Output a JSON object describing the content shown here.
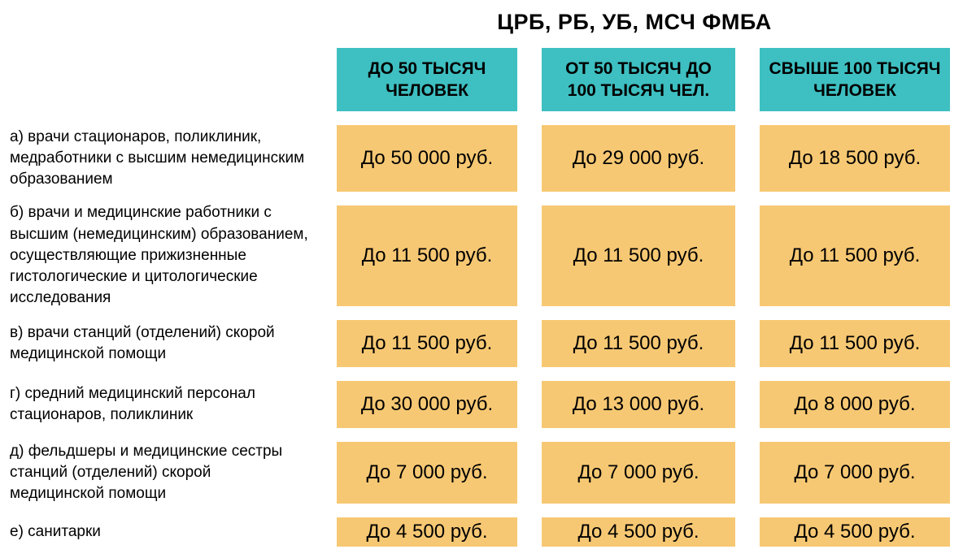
{
  "colors": {
    "header_bg": "#3ebfc1",
    "cell_bg": "#f7c873",
    "text": "#000000"
  },
  "chart_data": {
    "type": "table",
    "title": "ЦРБ, РБ, УБ, МСЧ ФМБА",
    "columns": [
      "ДО 50 ТЫСЯЧ ЧЕЛОВЕК",
      "ОТ 50 ТЫСЯЧ ДО 100 ТЫСЯЧ ЧЕЛ.",
      "СВЫШЕ 100 ТЫСЯЧ ЧЕЛОВЕК"
    ],
    "rows": [
      {
        "label": "а) врачи стационаров, поликлиник, медработники с высшим немедицинским образованием",
        "values": [
          "До 50 000 руб.",
          "До 29 000 руб.",
          "До 18 500 руб."
        ]
      },
      {
        "label": "б) врачи и медицинские работники с высшим (немедицинским) образованием, осуществляющие прижизненные гистологические и цитологические исследования",
        "values": [
          "До 11 500 руб.",
          "До 11 500 руб.",
          "До 11 500 руб."
        ]
      },
      {
        "label": "в) врачи станций (отделений) скорой медицинской помощи",
        "values": [
          "До 11 500 руб.",
          "До 11 500 руб.",
          "До 11 500 руб."
        ]
      },
      {
        "label": "г) средний медицинский персонал стационаров, поликлиник",
        "values": [
          "До 30 000 руб.",
          "До 13 000 руб.",
          "До 8 000 руб."
        ]
      },
      {
        "label": "д) фельдшеры и медицинские сестры станций (отделений) скорой медицинской помощи",
        "values": [
          "До 7 000 руб.",
          "До 7 000 руб.",
          "До 7 000 руб."
        ]
      },
      {
        "label": "е) санитарки",
        "values": [
          "До 4 500 руб.",
          "До 4 500 руб.",
          "До 4 500 руб."
        ]
      }
    ]
  }
}
